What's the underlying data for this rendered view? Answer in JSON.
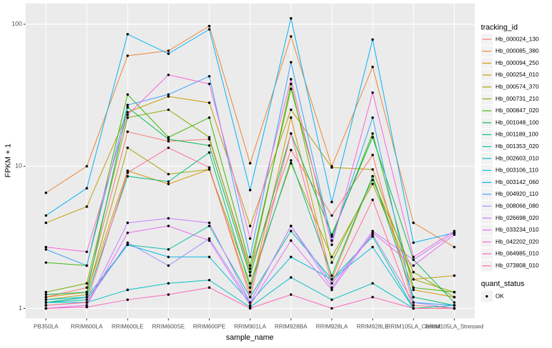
{
  "chart_data": {
    "type": "line",
    "x_label": "sample_name",
    "y_label": "FPKM + 1",
    "log_y": true,
    "grid": true,
    "ylim": [
      0.85,
      140
    ],
    "yticks": [
      1,
      10,
      100
    ],
    "legend_title": "tracking_id",
    "point_legend": {
      "title": "quant_status",
      "labels": [
        "OK"
      ],
      "color": "#000000"
    },
    "categories": [
      "PB350LA",
      "RRIM600LA",
      "RRIM600LE",
      "RRIM600SE",
      "RRIM600PE",
      "RRIM901LA",
      "RRIM928BA",
      "RRIM928LA",
      "RRIM928LE",
      "RRIM105LA_Control",
      "RRIM105LA_Stressed"
    ],
    "series": [
      {
        "name": "Hb_000024_130",
        "color": "#F8766D",
        "values": [
          1.2,
          1.4,
          17.5,
          15,
          15.5,
          1.9,
          13,
          4.5,
          12,
          1.05,
          1.0
        ]
      },
      {
        "name": "Hb_000085_380",
        "color": "#EA8331",
        "values": [
          6.5,
          10,
          60,
          65,
          97,
          10.5,
          82,
          10,
          50,
          4,
          2.7
        ]
      },
      {
        "name": "Hb_000094_250",
        "color": "#D89000",
        "values": [
          1.2,
          1.3,
          9.3,
          7.5,
          9.5,
          1.3,
          22,
          1.6,
          8.5,
          1.35,
          1.2
        ]
      },
      {
        "name": "Hb_000254_010",
        "color": "#C09B00",
        "values": [
          4,
          5.2,
          24,
          31,
          28,
          3.8,
          25,
          9.8,
          9.5,
          1.6,
          1.7
        ]
      },
      {
        "name": "Hb_000574_370",
        "color": "#A3A500",
        "values": [
          1.15,
          1.25,
          13.5,
          8.8,
          9.5,
          1.5,
          10.5,
          2.3,
          7.5,
          1.6,
          1.3
        ]
      },
      {
        "name": "Hb_000731_210",
        "color": "#7CAE00",
        "values": [
          1.3,
          1.5,
          22,
          25,
          16,
          1.8,
          38,
          2.1,
          8,
          1.8,
          1.2
        ]
      },
      {
        "name": "Hb_000847_020",
        "color": "#39B600",
        "values": [
          2.1,
          2.0,
          32,
          16,
          22,
          2.0,
          35,
          3.2,
          17,
          1.4,
          1.3
        ]
      },
      {
        "name": "Hb_001048_100",
        "color": "#00BB4E",
        "values": [
          1.25,
          1.3,
          26,
          15.5,
          14,
          1.7,
          17,
          3.3,
          16,
          2.2,
          1.1
        ]
      },
      {
        "name": "Hb_001189_100",
        "color": "#00BF7D",
        "values": [
          1.1,
          1.2,
          8.5,
          7.8,
          12.5,
          1.4,
          11,
          1.7,
          8.5,
          1.2,
          1.05
        ]
      },
      {
        "name": "Hb_001353_020",
        "color": "#00C1A3",
        "values": [
          1.1,
          1.15,
          2.8,
          2.6,
          3.8,
          1.2,
          3.5,
          1.6,
          3.2,
          1.0,
          1.05
        ]
      },
      {
        "name": "Hb_002603_010",
        "color": "#00BFC4",
        "values": [
          1.1,
          1.1,
          1.35,
          1.5,
          1.58,
          1.02,
          1.65,
          1.15,
          1.5,
          1.0,
          1.0
        ]
      },
      {
        "name": "Hb_003106_110",
        "color": "#00BAE0",
        "values": [
          1.15,
          1.2,
          2.8,
          2.3,
          2.3,
          1.1,
          2.3,
          1.6,
          2.7,
          1.0,
          1.0
        ]
      },
      {
        "name": "Hb_003142_060",
        "color": "#00B0F6",
        "values": [
          4.5,
          7,
          85,
          62,
          92,
          6.8,
          110,
          5.6,
          78,
          2.9,
          3.4
        ]
      },
      {
        "name": "Hb_004920_110",
        "color": "#35A2FF",
        "values": [
          2.6,
          2.0,
          27,
          32,
          43,
          2.3,
          54,
          3,
          22,
          1.1,
          1.05
        ]
      },
      {
        "name": "Hb_008066_080",
        "color": "#9590FF",
        "values": [
          1.05,
          1.1,
          2.9,
          2.0,
          3.1,
          1.1,
          3.8,
          1.5,
          3.3,
          1.1,
          1.0
        ]
      },
      {
        "name": "Hb_026698_020",
        "color": "#C77CFF",
        "values": [
          1.0,
          1.05,
          4.0,
          4.3,
          4.0,
          1.1,
          3.8,
          1.4,
          3.5,
          2.2,
          3.4
        ]
      },
      {
        "name": "Hb_033234_010",
        "color": "#E76BF3",
        "values": [
          1.0,
          1.05,
          3.4,
          3.8,
          3.0,
          1.05,
          3.0,
          1.35,
          3.4,
          2.0,
          3.3
        ]
      },
      {
        "name": "Hb_042202_020",
        "color": "#FA62DB",
        "values": [
          2.7,
          2.5,
          23,
          44,
          38,
          3.1,
          41,
          2.8,
          33,
          2.3,
          3.5
        ]
      },
      {
        "name": "Hb_064985_010",
        "color": "#FF62BC",
        "values": [
          1.0,
          1.02,
          1.15,
          1.25,
          1.4,
          1.0,
          1.25,
          1.0,
          1.2,
          1.0,
          1.0
        ]
      },
      {
        "name": "Hb_073808_010",
        "color": "#FF6C91",
        "values": [
          1.05,
          1.1,
          9,
          13.5,
          9.8,
          1.2,
          17,
          1.5,
          5.8,
          1.0,
          1.0
        ]
      }
    ]
  }
}
